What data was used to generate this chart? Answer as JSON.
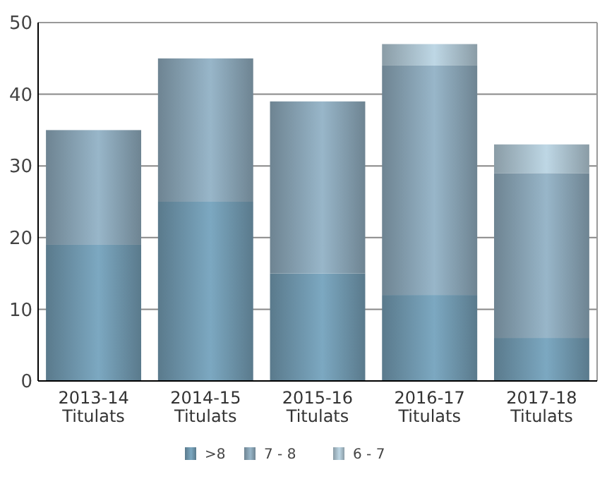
{
  "chart_data": {
    "type": "bar",
    "stacked": true,
    "categories": [
      "2013-14\nTitulats",
      "2014-15\nTitulats",
      "2015-16\nTitulats",
      "2016-17\nTitulats",
      "2017-18\nTitulats"
    ],
    "series": [
      {
        "name": ">8",
        "color": "#5a7a8c",
        "values": [
          19,
          25,
          15,
          12,
          6
        ]
      },
      {
        "name": "7 - 8",
        "color": "#6e8492",
        "values": [
          16,
          20,
          24,
          32,
          23
        ]
      },
      {
        "name": "6 - 7",
        "color": "#8a9ca6",
        "values": [
          0,
          0,
          0,
          3,
          4
        ]
      }
    ],
    "ylim": [
      0,
      50
    ],
    "yticks": [
      0,
      10,
      20,
      30,
      40,
      50
    ],
    "grid": "y",
    "legend": "bottom"
  }
}
